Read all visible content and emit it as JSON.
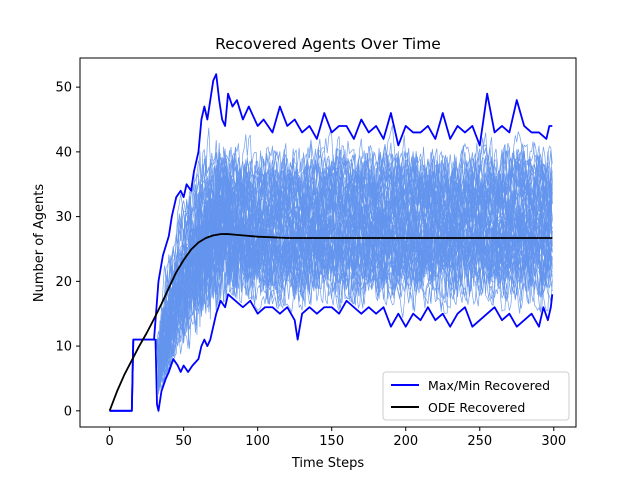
{
  "chart_data": {
    "type": "line",
    "title": "Recovered Agents Over Time",
    "xlabel": "Time Steps",
    "ylabel": "Number of Agents",
    "xlim": [
      -20,
      315
    ],
    "ylim": [
      -2.5,
      54.5
    ],
    "xticks": [
      0,
      50,
      100,
      150,
      200,
      250,
      300
    ],
    "yticks": [
      0,
      10,
      20,
      30,
      40,
      50
    ],
    "grid": false,
    "legend_position": "lower-right",
    "colors": {
      "simulations": "#6495ED",
      "maxmin": "#0000FF",
      "ode": "#000000"
    },
    "simulations": {
      "count": 60,
      "t_max": 299,
      "band_start": 33,
      "steady_low": 20,
      "steady_high": 38,
      "peak_time": 72,
      "peak_value": 44
    },
    "series": [
      {
        "name": "Max/Min Recovered",
        "upper": [
          [
            0,
            0
          ],
          [
            15,
            0
          ],
          [
            16,
            11
          ],
          [
            25,
            11
          ],
          [
            30,
            11
          ],
          [
            32,
            17
          ],
          [
            33,
            20
          ],
          [
            36,
            24
          ],
          [
            40,
            27
          ],
          [
            42,
            30
          ],
          [
            45,
            33
          ],
          [
            48,
            34
          ],
          [
            50,
            33
          ],
          [
            52,
            35
          ],
          [
            55,
            34
          ],
          [
            57,
            37
          ],
          [
            60,
            40
          ],
          [
            62,
            45
          ],
          [
            64,
            47
          ],
          [
            66,
            45
          ],
          [
            68,
            48
          ],
          [
            70,
            51
          ],
          [
            72,
            52
          ],
          [
            74,
            48
          ],
          [
            76,
            45
          ],
          [
            78,
            44
          ],
          [
            80,
            49
          ],
          [
            83,
            47
          ],
          [
            86,
            48
          ],
          [
            90,
            45
          ],
          [
            94,
            47
          ],
          [
            100,
            44
          ],
          [
            104,
            45
          ],
          [
            110,
            43
          ],
          [
            115,
            47
          ],
          [
            120,
            44
          ],
          [
            125,
            45
          ],
          [
            130,
            43
          ],
          [
            135,
            44
          ],
          [
            140,
            42
          ],
          [
            145,
            46
          ],
          [
            150,
            43
          ],
          [
            155,
            44
          ],
          [
            160,
            44
          ],
          [
            165,
            42
          ],
          [
            170,
            45
          ],
          [
            175,
            43
          ],
          [
            180,
            44
          ],
          [
            185,
            42
          ],
          [
            190,
            46
          ],
          [
            195,
            41
          ],
          [
            200,
            44
          ],
          [
            205,
            43
          ],
          [
            210,
            43
          ],
          [
            215,
            44
          ],
          [
            220,
            42
          ],
          [
            225,
            46
          ],
          [
            230,
            42
          ],
          [
            235,
            44
          ],
          [
            240,
            43
          ],
          [
            245,
            44
          ],
          [
            250,
            41
          ],
          [
            255,
            49
          ],
          [
            260,
            43
          ],
          [
            265,
            44
          ],
          [
            270,
            43
          ],
          [
            275,
            48
          ],
          [
            280,
            44
          ],
          [
            285,
            43
          ],
          [
            290,
            43
          ],
          [
            295,
            42
          ],
          [
            297,
            44
          ],
          [
            299,
            44
          ]
        ],
        "lower": [
          [
            0,
            0
          ],
          [
            15,
            0
          ],
          [
            16,
            11
          ],
          [
            25,
            11
          ],
          [
            30,
            11
          ],
          [
            31,
            11
          ],
          [
            32,
            1
          ],
          [
            33,
            0
          ],
          [
            35,
            3
          ],
          [
            38,
            5
          ],
          [
            40,
            6
          ],
          [
            43,
            8
          ],
          [
            46,
            7
          ],
          [
            48,
            6
          ],
          [
            50,
            7
          ],
          [
            53,
            6
          ],
          [
            56,
            7
          ],
          [
            60,
            8
          ],
          [
            62,
            10
          ],
          [
            64,
            11
          ],
          [
            66,
            10
          ],
          [
            68,
            11
          ],
          [
            70,
            13
          ],
          [
            72,
            15
          ],
          [
            75,
            17
          ],
          [
            78,
            16
          ],
          [
            80,
            18
          ],
          [
            85,
            17
          ],
          [
            90,
            16
          ],
          [
            95,
            17
          ],
          [
            100,
            15
          ],
          [
            105,
            16
          ],
          [
            110,
            16
          ],
          [
            115,
            15
          ],
          [
            120,
            16
          ],
          [
            125,
            14
          ],
          [
            127,
            11
          ],
          [
            130,
            15
          ],
          [
            135,
            16
          ],
          [
            140,
            15
          ],
          [
            145,
            16
          ],
          [
            150,
            16
          ],
          [
            155,
            15
          ],
          [
            160,
            17
          ],
          [
            165,
            16
          ],
          [
            170,
            15
          ],
          [
            175,
            16
          ],
          [
            180,
            15
          ],
          [
            185,
            16
          ],
          [
            190,
            13
          ],
          [
            195,
            15
          ],
          [
            200,
            13
          ],
          [
            205,
            15
          ],
          [
            210,
            14
          ],
          [
            215,
            16
          ],
          [
            220,
            14
          ],
          [
            225,
            15
          ],
          [
            230,
            13
          ],
          [
            235,
            15
          ],
          [
            240,
            16
          ],
          [
            245,
            13
          ],
          [
            250,
            14
          ],
          [
            255,
            15
          ],
          [
            260,
            16
          ],
          [
            265,
            14
          ],
          [
            270,
            15
          ],
          [
            275,
            13
          ],
          [
            280,
            14
          ],
          [
            285,
            15
          ],
          [
            290,
            13
          ],
          [
            293,
            16
          ],
          [
            296,
            14
          ],
          [
            298,
            16
          ],
          [
            299,
            18
          ]
        ]
      },
      {
        "name": "ODE Recovered",
        "points": [
          [
            0,
            0
          ],
          [
            5,
            3
          ],
          [
            10,
            5.6
          ],
          [
            15,
            7.8
          ],
          [
            20,
            10
          ],
          [
            25,
            12
          ],
          [
            30,
            14.2
          ],
          [
            35,
            16.5
          ],
          [
            40,
            19
          ],
          [
            45,
            21.4
          ],
          [
            50,
            23.3
          ],
          [
            55,
            24.9
          ],
          [
            60,
            26
          ],
          [
            65,
            26.7
          ],
          [
            70,
            27.1
          ],
          [
            75,
            27.3
          ],
          [
            80,
            27.3
          ],
          [
            85,
            27.2
          ],
          [
            90,
            27.1
          ],
          [
            100,
            26.9
          ],
          [
            110,
            26.8
          ],
          [
            120,
            26.7
          ],
          [
            150,
            26.7
          ],
          [
            200,
            26.7
          ],
          [
            250,
            26.7
          ],
          [
            299,
            26.7
          ]
        ]
      }
    ]
  }
}
